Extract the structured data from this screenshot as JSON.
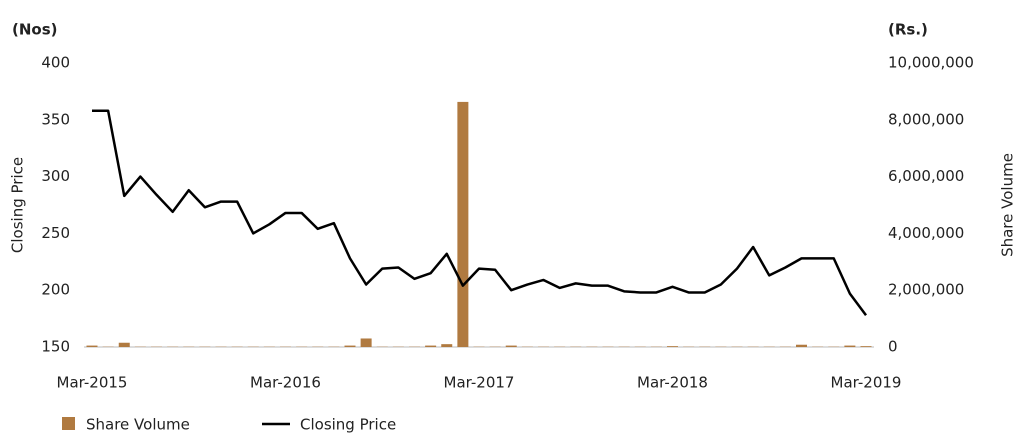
{
  "chart_data": {
    "type": "bar-line",
    "left_unit": "(Nos)",
    "right_unit": "(Rs.)",
    "ylabel": "Closing Price",
    "y2label": "Share Volume",
    "categories": [
      "Mar-2015",
      null,
      null,
      null,
      null,
      null,
      null,
      null,
      null,
      null,
      null,
      null,
      "Mar-2016",
      null,
      null,
      null,
      null,
      null,
      null,
      null,
      null,
      null,
      null,
      null,
      "Mar-2017",
      null,
      null,
      null,
      null,
      null,
      null,
      null,
      null,
      null,
      null,
      null,
      "Mar-2018",
      null,
      null,
      null,
      null,
      null,
      null,
      null,
      null,
      null,
      null,
      null,
      "Mar-2019"
    ],
    "series": [
      {
        "name": "Share Volume",
        "color": "#b07a40",
        "axis": "y2",
        "kind": "bar",
        "values": [
          50000,
          10000,
          150000,
          10000,
          10000,
          10000,
          10000,
          10000,
          10000,
          10000,
          10000,
          10000,
          10000,
          10000,
          10000,
          10000,
          50000,
          300000,
          10000,
          10000,
          10000,
          50000,
          100000,
          8630000,
          10000,
          10000,
          50000,
          10000,
          10000,
          10000,
          10000,
          10000,
          10000,
          10000,
          10000,
          10000,
          30000,
          10000,
          10000,
          10000,
          10000,
          10000,
          10000,
          10000,
          80000,
          10000,
          10000,
          50000,
          30000
        ]
      },
      {
        "name": "Closing Price",
        "color": "#000000",
        "axis": "y",
        "kind": "line",
        "values": [
          358,
          358,
          283,
          300,
          284,
          269,
          288,
          273,
          278,
          278,
          250,
          258,
          268,
          268,
          254,
          259,
          228,
          205,
          219,
          220,
          210,
          215,
          232,
          204,
          219,
          218,
          200,
          205,
          209,
          202,
          206,
          204,
          204,
          199,
          198,
          198,
          203,
          198,
          198,
          205,
          219,
          238,
          213,
          220,
          228,
          228,
          228,
          197,
          178
        ]
      }
    ],
    "ylim": [
      150,
      400
    ],
    "yticks": [
      150,
      200,
      250,
      300,
      350,
      400
    ],
    "y2lim": [
      0,
      10000000
    ],
    "y2ticks": [
      0,
      {
        "value": 2000000,
        "label": "2,000,000"
      },
      {
        "value": 4000000,
        "label": "4,000,000"
      },
      {
        "value": 6000000,
        "label": "6,000,000"
      },
      {
        "value": 8000000,
        "label": "8,000,000"
      },
      {
        "value": 10000000,
        "label": "10,000,000"
      }
    ],
    "legend": "bottom-left"
  }
}
